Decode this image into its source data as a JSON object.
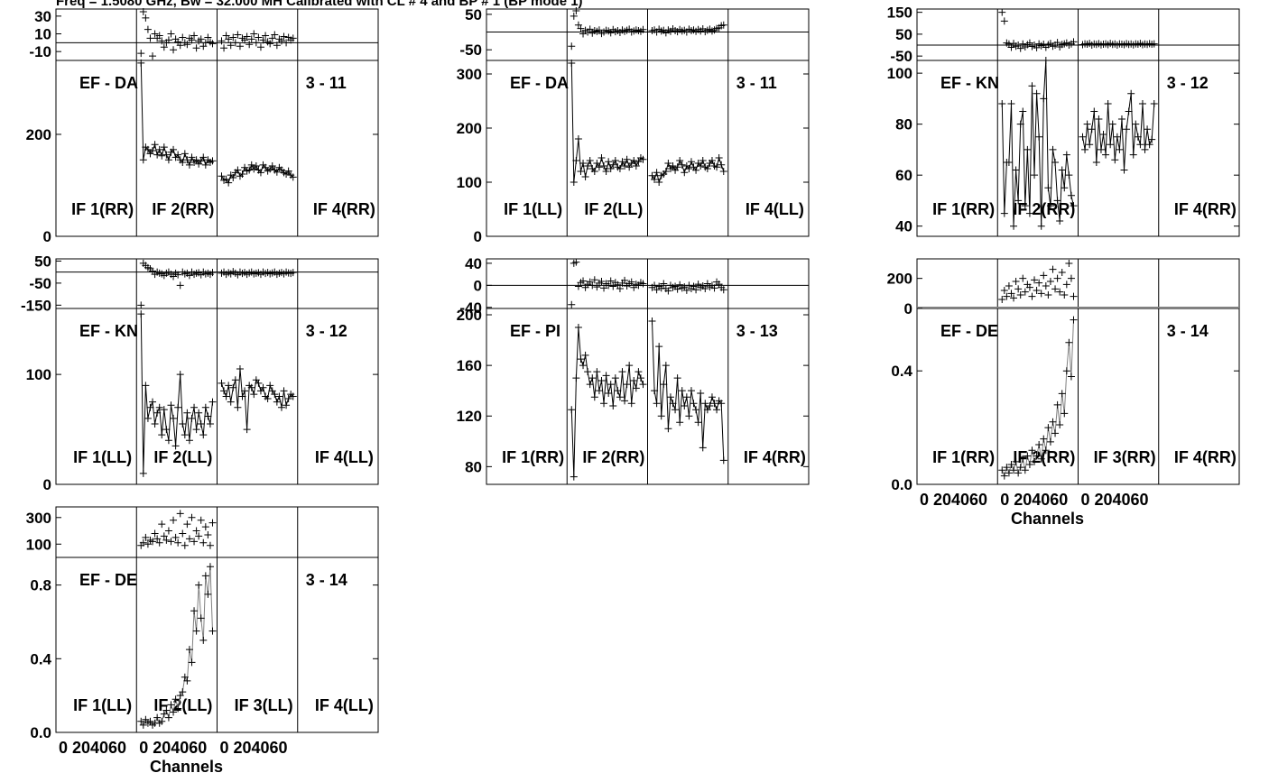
{
  "title": "Freq = 1.5080 GHz, Bw = 32.000 MH   Calibrated with CL # 4 and BP # 1 (BP mode 1)",
  "colors": {
    "ink": "#000000",
    "grey_trace": "#808080",
    "background": "#ffffff"
  },
  "chart_data": [
    {
      "type": "line",
      "baseline": "EF - DA",
      "range": "3 - 11",
      "if_labels": [
        "IF 1(RR)",
        "IF 2(RR)",
        "",
        "IF 4(RR)"
      ],
      "top": {
        "ylim": [
          -20,
          38
        ],
        "yticks": [
          "30",
          "10",
          "-10"
        ],
        "ytick_values": [
          30,
          10,
          -10
        ],
        "zero_line": 0
      },
      "amp": {
        "ylim": [
          0,
          345
        ],
        "yticks": [
          "200",
          "0"
        ],
        "ytick_values": [
          200,
          0
        ]
      },
      "if_segments": [
        {
          "if": 2,
          "phase": [
            -12,
            35,
            28,
            15,
            5,
            -15,
            10,
            5,
            8,
            2,
            -5,
            0,
            3,
            10,
            -8,
            4,
            1,
            -3,
            6,
            0,
            -2,
            5,
            3,
            8,
            -6,
            2,
            4,
            -4,
            0,
            6,
            1,
            -1
          ],
          "amp": [
            340,
            150,
            175,
            170,
            162,
            168,
            180,
            160,
            170,
            158,
            175,
            160,
            150,
            165,
            170,
            155,
            160,
            150,
            145,
            162,
            150,
            140,
            155,
            145,
            150,
            142,
            148,
            155,
            140,
            150,
            145,
            148
          ]
        },
        {
          "if": 3,
          "phase": [
            2,
            -6,
            8,
            4,
            -3,
            6,
            0,
            9,
            -4,
            5,
            3,
            7,
            -2,
            4,
            10,
            0,
            6,
            -5,
            3,
            8,
            1,
            -1,
            5,
            9,
            -3,
            4,
            2,
            7,
            0,
            6,
            3,
            5
          ],
          "amp": [
            118,
            110,
            112,
            105,
            120,
            115,
            125,
            130,
            118,
            122,
            135,
            128,
            130,
            140,
            132,
            138,
            130,
            125,
            140,
            135,
            128,
            132,
            138,
            130,
            126,
            135,
            130,
            125,
            122,
            128,
            120,
            116
          ]
        }
      ]
    },
    {
      "type": "line",
      "baseline": "EF - DA",
      "range": "3 - 11",
      "if_labels": [
        "IF 1(LL)",
        "IF 2(LL)",
        "",
        "IF 4(LL)"
      ],
      "top": {
        "ylim": [
          -80,
          65
        ],
        "yticks": [
          "50",
          "-50"
        ],
        "ytick_values": [
          50,
          -50
        ],
        "zero_line": 0
      },
      "amp": {
        "ylim": [
          0,
          325
        ],
        "yticks": [
          "300",
          "200",
          "100",
          "0"
        ],
        "ytick_values": [
          300,
          200,
          100,
          0
        ]
      },
      "if_segments": [
        {
          "if": 2,
          "phase": [
            -40,
            45,
            60,
            20,
            10,
            -5,
            5,
            0,
            8,
            -3,
            4,
            2,
            6,
            -4,
            0,
            5,
            3,
            -2,
            7,
            1,
            4,
            -1,
            6,
            2,
            5,
            8,
            0,
            3,
            6,
            4,
            2,
            7
          ],
          "amp": [
            320,
            100,
            140,
            180,
            120,
            135,
            110,
            130,
            140,
            125,
            120,
            135,
            128,
            145,
            130,
            120,
            138,
            125,
            132,
            140,
            128,
            125,
            138,
            130,
            142,
            128,
            135,
            140,
            130,
            138,
            145,
            142
          ]
        },
        {
          "if": 3,
          "phase": [
            4,
            6,
            0,
            8,
            3,
            5,
            -2,
            6,
            2,
            9,
            4,
            1,
            7,
            3,
            5,
            0,
            8,
            4,
            6,
            2,
            7,
            3,
            9,
            1,
            5,
            8,
            3,
            6,
            10,
            12,
            18,
            20
          ],
          "amp": [
            112,
            105,
            118,
            100,
            112,
            115,
            120,
            135,
            125,
            130,
            122,
            128,
            140,
            132,
            118,
            130,
            125,
            138,
            128,
            122,
            135,
            130,
            140,
            128,
            125,
            135,
            140,
            130,
            128,
            145,
            132,
            120
          ]
        }
      ]
    },
    {
      "type": "line",
      "baseline": "EF - KN",
      "range": "3 - 12",
      "if_labels": [
        "IF 1(RR)",
        "IF 2(RR)",
        "",
        "IF 4(RR)"
      ],
      "top": {
        "ylim": [
          -70,
          165
        ],
        "yticks": [
          "150",
          "50",
          "-50"
        ],
        "ytick_values": [
          150,
          50,
          -50
        ],
        "zero_line": 0
      },
      "amp": {
        "ylim": [
          36,
          105
        ],
        "yticks": [
          "100",
          "80",
          "60",
          "40"
        ],
        "ytick_values": [
          100,
          80,
          60,
          40
        ]
      },
      "if_segments": [
        {
          "if": 2,
          "phase": [
            150,
            110,
            10,
            5,
            -10,
            8,
            -5,
            0,
            -15,
            5,
            -8,
            2,
            10,
            -6,
            0,
            -12,
            6,
            -3,
            4,
            -10,
            2,
            8,
            -5,
            0,
            12,
            -8,
            3,
            6,
            10,
            0,
            5,
            15
          ],
          "amp": [
            88,
            45,
            65,
            65,
            88,
            40,
            62,
            50,
            80,
            85,
            48,
            70,
            45,
            95,
            60,
            92,
            75,
            40,
            90,
            105,
            55,
            48,
            70,
            65,
            50,
            42,
            62,
            55,
            68,
            60,
            52,
            48
          ]
        },
        {
          "if": 3,
          "phase": [
            2,
            6,
            4,
            8,
            0,
            5,
            3,
            7,
            1,
            4,
            6,
            2,
            8,
            3,
            5,
            0,
            6,
            4,
            2,
            7,
            3,
            5,
            1,
            6,
            4,
            8,
            2,
            5,
            3,
            7,
            4,
            6
          ],
          "amp": [
            75,
            70,
            80,
            72,
            78,
            85,
            65,
            82,
            70,
            76,
            68,
            88,
            72,
            80,
            66,
            75,
            70,
            82,
            62,
            78,
            85,
            92,
            68,
            80,
            75,
            72,
            88,
            70,
            78,
            72,
            74,
            88
          ]
        }
      ]
    },
    {
      "type": "line",
      "baseline": "EF - KN",
      "range": "3 - 12",
      "if_labels": [
        "IF 1(LL)",
        "IF 2(LL)",
        "",
        "IF 4(LL)"
      ],
      "top": {
        "ylim": [
          -165,
          60
        ],
        "yticks": [
          "50",
          "-50",
          "-150"
        ],
        "ytick_values": [
          50,
          -50,
          -150
        ],
        "zero_line": 0
      },
      "amp": {
        "ylim": [
          0,
          160
        ],
        "yticks": [
          "100",
          "0"
        ],
        "ytick_values": [
          100,
          0
        ]
      },
      "if_segments": [
        {
          "if": 2,
          "phase": [
            -150,
            40,
            30,
            20,
            15,
            5,
            -10,
            0,
            -5,
            -8,
            -15,
            -5,
            0,
            -10,
            -20,
            -5,
            -12,
            -60,
            0,
            -8,
            -5,
            -15,
            0,
            -10,
            -5,
            -3,
            -12,
            0,
            -8,
            -5,
            -10,
            -2
          ],
          "amp": [
            155,
            10,
            90,
            60,
            70,
            75,
            55,
            65,
            70,
            45,
            68,
            50,
            40,
            72,
            60,
            35,
            70,
            100,
            55,
            45,
            65,
            40,
            60,
            70,
            50,
            65,
            55,
            45,
            70,
            62,
            55,
            75
          ]
        },
        {
          "if": 3,
          "phase": [
            -5,
            0,
            -10,
            -3,
            -8,
            2,
            -5,
            -12,
            0,
            -6,
            -2,
            -10,
            -4,
            0,
            -8,
            -5,
            -3,
            -10,
            0,
            -6,
            -2,
            -8,
            -4,
            0,
            -10,
            -5,
            -2,
            -8,
            0,
            -4,
            -6,
            -2
          ],
          "amp": [
            92,
            85,
            80,
            90,
            75,
            88,
            95,
            70,
            105,
            80,
            85,
            50,
            90,
            88,
            82,
            95,
            92,
            85,
            88,
            80,
            78,
            90,
            85,
            82,
            75,
            80,
            70,
            85,
            72,
            78,
            82,
            80
          ]
        }
      ]
    },
    {
      "type": "line",
      "baseline": "EF - PI",
      "range": "3 - 13",
      "if_labels": [
        "IF 1(RR)",
        "IF 2(RR)",
        "",
        "IF 4(RR)"
      ],
      "top": {
        "ylim": [
          -42,
          48
        ],
        "yticks": [
          "40",
          "0",
          "-40"
        ],
        "ytick_values": [
          40,
          0,
          -40
        ],
        "zero_line": 0
      },
      "amp": {
        "ylim": [
          66,
          205
        ],
        "yticks": [
          "200",
          "160",
          "120",
          "80"
        ],
        "ytick_values": [
          200,
          160,
          120,
          80
        ]
      },
      "if_segments": [
        {
          "if": 2,
          "phase": [
            -35,
            40,
            42,
            -2,
            5,
            8,
            -4,
            2,
            6,
            0,
            10,
            -3,
            4,
            7,
            -5,
            3,
            0,
            8,
            -2,
            5,
            1,
            -6,
            4,
            9,
            -1,
            3,
            6,
            -4,
            2,
            0,
            5,
            3
          ],
          "amp": [
            125,
            72,
            150,
            190,
            165,
            160,
            168,
            155,
            145,
            150,
            135,
            155,
            140,
            148,
            130,
            152,
            138,
            145,
            128,
            150,
            140,
            135,
            155,
            132,
            145,
            160,
            130,
            148,
            142,
            155,
            150,
            145
          ]
        },
        {
          "if": 3,
          "phase": [
            -4,
            0,
            -8,
            -2,
            -5,
            3,
            -6,
            -10,
            0,
            -4,
            -2,
            -7,
            1,
            -5,
            -3,
            -9,
            0,
            -6,
            -2,
            -8,
            2,
            -4,
            -1,
            -6,
            3,
            -3,
            0,
            -5,
            6,
            2,
            -4,
            -8
          ],
          "amp": [
            195,
            140,
            130,
            175,
            120,
            145,
            160,
            110,
            135,
            130,
            125,
            150,
            115,
            140,
            128,
            135,
            120,
            140,
            130,
            125,
            115,
            138,
            95,
            130,
            125,
            128,
            135,
            130,
            125,
            132,
            130,
            85
          ]
        }
      ]
    },
    {
      "type": "line",
      "baseline": "EF - DE",
      "range": "3 - 14",
      "if_labels": [
        "IF 1(RR)",
        "IF 2(RR)",
        "IF 3(RR)",
        "IF 4(RR)"
      ],
      "top": {
        "ylim": [
          0,
          330
        ],
        "yticks": [
          "200",
          "0"
        ],
        "ytick_values": [
          200,
          0
        ],
        "zero_line": 0
      },
      "amp": {
        "ylim": [
          0,
          0.62
        ],
        "yticks": [
          "0.4",
          "0.0"
        ],
        "ytick_values": [
          0.4,
          0.0
        ]
      },
      "xticks": [
        "0",
        "20",
        "40",
        "60",
        "0",
        "20",
        "40",
        "60",
        "0",
        "20",
        "40",
        "60"
      ],
      "xlabel": "Channels",
      "if_segments": [
        {
          "if": 2,
          "phase": [
            60,
            120,
            80,
            150,
            100,
            70,
            180,
            130,
            90,
            200,
            110,
            160,
            140,
            80,
            190,
            120,
            170,
            100,
            220,
            150,
            90,
            180,
            260,
            130,
            200,
            110,
            240,
            90,
            160,
            300,
            200,
            80
          ],
          "amp": [
            0.05,
            0.03,
            0.06,
            0.04,
            0.07,
            0.05,
            0.08,
            0.04,
            0.06,
            0.09,
            0.05,
            0.1,
            0.07,
            0.12,
            0.08,
            0.1,
            0.14,
            0.09,
            0.16,
            0.12,
            0.2,
            0.15,
            0.22,
            0.18,
            0.28,
            0.21,
            0.32,
            0.25,
            0.4,
            0.5,
            0.38,
            0.58
          ]
        }
      ]
    },
    {
      "type": "line",
      "baseline": "EF - DE",
      "range": "3 - 14",
      "if_labels": [
        "IF 1(LL)",
        "IF 2(LL)",
        "IF 3(LL)",
        "IF 4(LL)"
      ],
      "top": {
        "ylim": [
          0,
          380
        ],
        "yticks": [
          "300",
          "100"
        ],
        "ytick_values": [
          300,
          100
        ],
        "zero_line": 0
      },
      "amp": {
        "ylim": [
          0,
          0.95
        ],
        "yticks": [
          "0.8",
          "0.4",
          "0.0"
        ],
        "ytick_values": [
          0.8,
          0.4,
          0.0
        ]
      },
      "xticks": [
        "0",
        "20",
        "40",
        "60",
        "0",
        "20",
        "40",
        "60",
        "0",
        "20",
        "40",
        "60"
      ],
      "xlabel": "Channels",
      "if_segments": [
        {
          "if": 2,
          "phase": [
            90,
            110,
            150,
            100,
            130,
            120,
            180,
            140,
            110,
            250,
            160,
            130,
            200,
            120,
            280,
            150,
            110,
            330,
            180,
            90,
            250,
            140,
            300,
            120,
            200,
            160,
            280,
            110,
            230,
            170,
            90,
            260
          ],
          "amp": [
            0.06,
            0.04,
            0.07,
            0.05,
            0.06,
            0.04,
            0.05,
            0.08,
            0.05,
            0.06,
            0.1,
            0.12,
            0.08,
            0.15,
            0.11,
            0.18,
            0.13,
            0.2,
            0.22,
            0.3,
            0.28,
            0.45,
            0.38,
            0.66,
            0.55,
            0.8,
            0.62,
            0.5,
            0.85,
            0.75,
            0.9,
            0.55
          ]
        }
      ]
    }
  ]
}
